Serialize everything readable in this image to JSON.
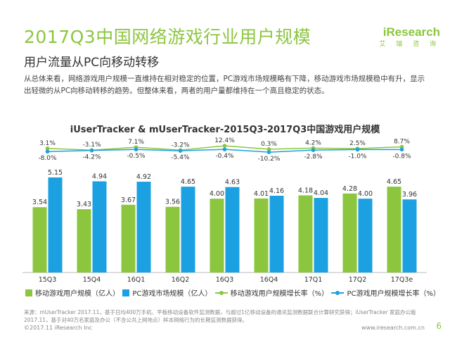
{
  "header": {
    "title": "2017Q3中国网络游戏行业用户规模",
    "subtitle": "用户流量从PC向移动转移",
    "logo_main": "iResearch",
    "logo_sub": "艾 瑞 咨 询"
  },
  "description": "从总体来看，网络游戏用户规模一直维持在相对稳定的位置，PC游戏市场规模略有下降，移动游戏市场规模稳中有升，显示出轻微的从PC向移动转移的趋势。但整体来看，两者的用户量都维持在一个高且稳定的状态。",
  "chart_data": {
    "type": "bar",
    "title": "iUserTracker & mUserTracker-2015Q3-2017Q3中国游戏用户规模",
    "categories": [
      "15Q3",
      "15Q4",
      "16Q1",
      "16Q2",
      "16Q3",
      "16Q4",
      "17Q1",
      "17Q2",
      "17Q3e"
    ],
    "series": [
      {
        "name": "移动游戏用户规模（亿人）",
        "type": "bar",
        "color": "#8cc63f",
        "values": [
          3.54,
          3.43,
          3.67,
          3.56,
          4.0,
          4.01,
          4.18,
          4.28,
          4.65
        ]
      },
      {
        "name": "PC游戏市场规模（亿人）",
        "type": "bar",
        "color": "#1ba1e2",
        "values": [
          5.15,
          4.94,
          4.92,
          4.65,
          4.63,
          4.16,
          4.04,
          4.0,
          3.96
        ]
      },
      {
        "name": "移动游戏用户规模增长率（%）",
        "type": "line",
        "color": "#8cc63f",
        "values": [
          3.1,
          -3.1,
          7.1,
          -3.2,
          12.4,
          0.3,
          4.2,
          2.5,
          8.7
        ],
        "labels": [
          "3.1%",
          "-3.1%",
          "7.1%",
          "-3.2%",
          "12.4%",
          "0.3%",
          "4.2%",
          "2.5%",
          "8.7%"
        ]
      },
      {
        "name": "PC游戏用户规模增长率（%）",
        "type": "line",
        "color": "#1ba1e2",
        "values": [
          -8.0,
          -4.2,
          -0.5,
          -5.4,
          -0.4,
          -10.2,
          -2.8,
          -1.0,
          -0.8
        ],
        "labels": [
          "-8.0%",
          "-4.2%",
          "-0.5%",
          "-5.4%",
          "-0.4%",
          "-10.2%",
          "-2.8%",
          "-1.0%",
          "-0.8%"
        ]
      }
    ],
    "legend_position": "bottom",
    "grid": false
  },
  "source": "来源：mUserTracker 2017.11，基于日均400万手机、平板移动设备软件监测数据，与超过1亿移动设备的通讯监测数据联合计算研究获得；iUserTracker 家庭办公版 2017.11，基于对40万名家庭及办公（不含公共上网地点）样本网络行为的长期监测数据获得。",
  "footer": {
    "copyright": "©2017.11 iResearch Inc",
    "website": "www.iresearch.com.cn",
    "page": "6"
  }
}
